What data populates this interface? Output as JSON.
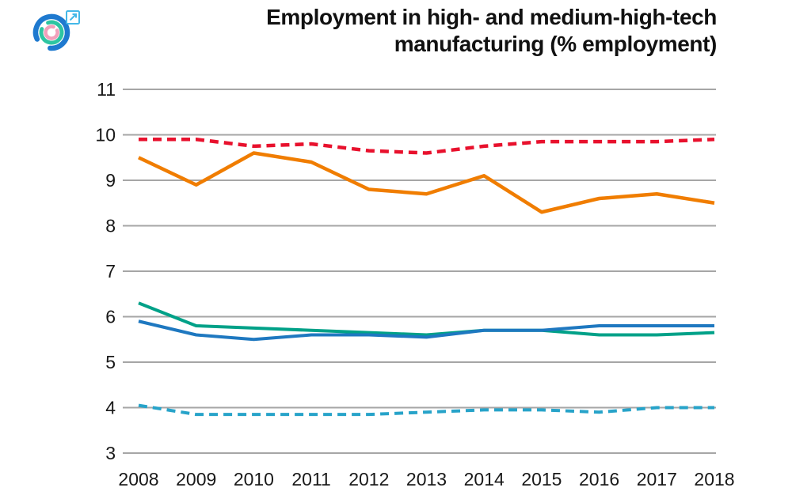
{
  "header": {
    "title_lines": [
      "Employment in high- and medium-high-tech",
      "manufacturing (% employment)"
    ],
    "logo": {
      "outer_arc_color": "#1e79cf",
      "middle_arc_color": "#2dc5a2",
      "inner_arc_color": "#f2a0bb",
      "external_link_color": "#44b8e8"
    }
  },
  "chart_data": {
    "type": "line",
    "title": "Employment in high- and medium-high-tech manufacturing (% employment)",
    "xlabel": "",
    "ylabel": "",
    "x": [
      2008,
      2009,
      2010,
      2011,
      2012,
      2013,
      2014,
      2015,
      2016,
      2017,
      2018
    ],
    "ylim": [
      3,
      11
    ],
    "yticks": [
      3,
      4,
      5,
      6,
      7,
      8,
      9,
      10,
      11
    ],
    "grid": true,
    "legend": "none",
    "axis_color": "#a6a6a6",
    "label_color": "#191919",
    "series": [
      {
        "name": "red-dashed-line",
        "color": "#e8112d",
        "dashed": true,
        "width": 4.5,
        "values": [
          9.9,
          9.9,
          9.75,
          9.8,
          9.65,
          9.6,
          9.75,
          9.85,
          9.85,
          9.85,
          9.9
        ]
      },
      {
        "name": "orange-line",
        "color": "#f07d00",
        "dashed": false,
        "width": 4.5,
        "values": [
          9.5,
          8.9,
          9.6,
          9.4,
          8.8,
          8.7,
          9.1,
          8.3,
          8.6,
          8.7,
          8.5
        ]
      },
      {
        "name": "green-line",
        "color": "#00a188",
        "dashed": false,
        "width": 4,
        "values": [
          6.3,
          5.8,
          5.75,
          5.7,
          5.65,
          5.6,
          5.7,
          5.7,
          5.6,
          5.6,
          5.65
        ]
      },
      {
        "name": "blue-line",
        "color": "#1e78c0",
        "dashed": false,
        "width": 4,
        "values": [
          5.9,
          5.6,
          5.5,
          5.6,
          5.6,
          5.55,
          5.7,
          5.7,
          5.8,
          5.8,
          5.8
        ]
      },
      {
        "name": "cyan-dashed-line",
        "color": "#27a3c9",
        "dashed": true,
        "width": 4,
        "values": [
          4.05,
          3.85,
          3.85,
          3.85,
          3.85,
          3.9,
          3.95,
          3.95,
          3.9,
          4.0,
          4.0
        ]
      }
    ]
  }
}
